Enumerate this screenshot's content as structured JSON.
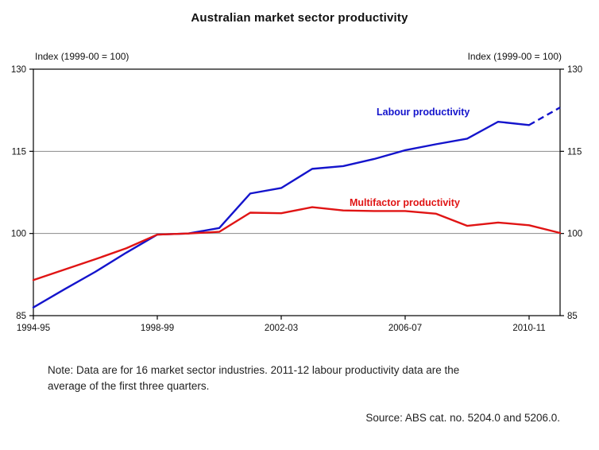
{
  "title": "Australian market sector productivity",
  "axis_label_left": "Index (1999-00 = 100)",
  "axis_label_right": "Index (1999-00 = 100)",
  "series_labels": {
    "labour": "Labour productivity",
    "multifactor": "Multifactor productivity"
  },
  "note": {
    "line1": "Note: Data are for 16 market sector industries. 2011-12 labour productivity data are the",
    "line2": "average of the first three quarters."
  },
  "source": "Source: ABS cat. no. 5204.0 and 5206.0.",
  "colors": {
    "labour": "#1414cc",
    "multifactor": "#e01414",
    "grid": "#8a8a8a",
    "frame": "#000000"
  },
  "chart_data": {
    "type": "line",
    "x": [
      "1994-95",
      "1995-96",
      "1996-97",
      "1997-98",
      "1998-99",
      "1999-00",
      "2000-01",
      "2001-02",
      "2002-03",
      "2003-04",
      "2004-05",
      "2005-06",
      "2006-07",
      "2007-08",
      "2008-09",
      "2009-10",
      "2010-11",
      "2011-12"
    ],
    "xtick_labels": [
      "1994-95",
      "1998-99",
      "2002-03",
      "2006-07",
      "2010-11"
    ],
    "xtick_indices": [
      0,
      4,
      8,
      12,
      16
    ],
    "yticks": [
      85,
      100,
      115,
      130
    ],
    "ylim": [
      85,
      130
    ],
    "ylabel_left": "Index (1999-00 = 100)",
    "ylabel_right": "Index (1999-00 = 100)",
    "grid": true,
    "legend_position": "inline-annotations",
    "series": [
      {
        "name": "Labour productivity",
        "color": "#1414cc",
        "dashed_from_index": 16,
        "values": [
          86.5,
          89.8,
          93.0,
          96.5,
          99.8,
          100.0,
          101.0,
          107.3,
          108.3,
          111.8,
          112.3,
          113.6,
          115.2,
          116.3,
          117.3,
          120.4,
          119.8,
          123.0
        ]
      },
      {
        "name": "Multifactor productivity",
        "color": "#e01414",
        "dashed_from_index": null,
        "values": [
          91.5,
          93.4,
          95.3,
          97.3,
          99.8,
          100.0,
          100.3,
          103.8,
          103.7,
          104.8,
          104.2,
          104.1,
          104.1,
          103.6,
          101.4,
          102.0,
          101.5,
          100.1
        ]
      }
    ]
  }
}
